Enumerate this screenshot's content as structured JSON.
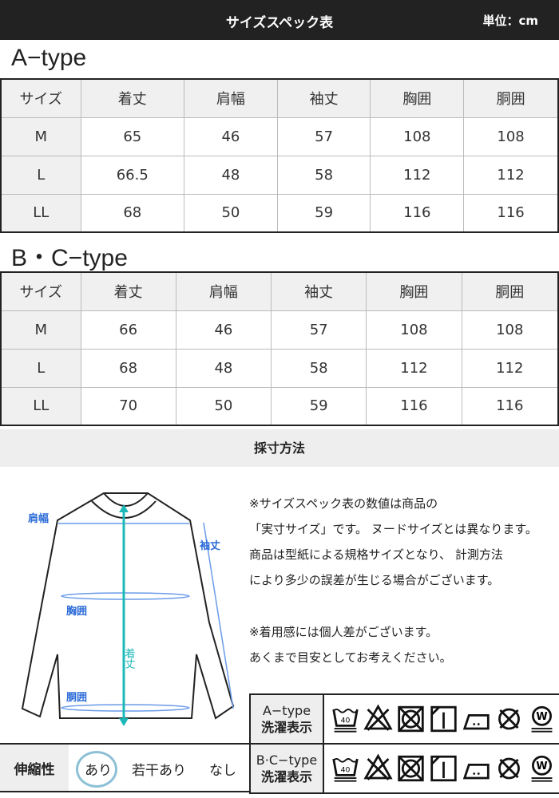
{
  "header": {
    "title": "サイズスペック表",
    "unit": "単位：cm"
  },
  "columns": [
    "サイズ",
    "着丈",
    "肩幅",
    "袖丈",
    "胸囲",
    "胴囲"
  ],
  "tables": [
    {
      "label": "A−type",
      "rows": [
        [
          "M",
          "65",
          "46",
          "57",
          "108",
          "108"
        ],
        [
          "L",
          "66.5",
          "48",
          "58",
          "112",
          "112"
        ],
        [
          "LL",
          "68",
          "50",
          "59",
          "116",
          "116"
        ]
      ]
    },
    {
      "label": "B・C−type",
      "rows": [
        [
          "M",
          "66",
          "46",
          "57",
          "108",
          "108"
        ],
        [
          "L",
          "68",
          "48",
          "58",
          "112",
          "112"
        ],
        [
          "LL",
          "70",
          "50",
          "59",
          "116",
          "116"
        ]
      ]
    }
  ],
  "measure": {
    "title": "採寸方法",
    "labels": {
      "shoulder": "肩幅",
      "sleeve": "袖丈",
      "chest": "胸囲",
      "length": "着丈",
      "waist": "胴囲"
    },
    "notes": [
      "※サイズスペック表の数値は商品の",
      "「実寸サイズ」です。 ヌードサイズとは異なります。",
      "商品は型紙による規格サイズとなり、 計測方法",
      "により多少の誤差が生じる場合がございます。",
      "※着用感には個人差がございます。",
      "あくまで目安としてお考えください。"
    ]
  },
  "wash": [
    {
      "type": "A−type",
      "label": "洗濯表示"
    },
    {
      "type": "B·C−type",
      "label": "洗濯表示"
    }
  ],
  "wash_icons": [
    "wash-40-gentle-icon",
    "no-bleach-icon",
    "no-tumble-dry-icon",
    "line-dry-shade-icon",
    "iron-medium-icon",
    "no-dry-clean-icon",
    "wet-clean-gentle-icon"
  ],
  "stretch": {
    "label": "伸縮性",
    "options": [
      "あり",
      "若干あり",
      "なし"
    ],
    "selected": "あり",
    "highlight_color": "#8cc0d6"
  }
}
